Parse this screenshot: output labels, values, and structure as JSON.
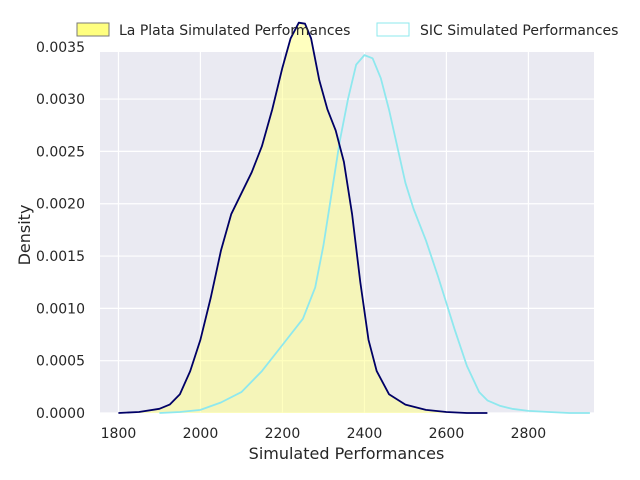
{
  "chart_data": {
    "type": "area",
    "title": "",
    "xlabel": "Simulated Performances",
    "ylabel": "Density",
    "xlim": [
      1755,
      2960
    ],
    "ylim": [
      0,
      0.00345
    ],
    "grid": true,
    "legend_position": "top",
    "x_ticks": [
      1800,
      2000,
      2200,
      2400,
      2600,
      2800
    ],
    "y_ticks": [
      0.0,
      0.0005,
      0.001,
      0.0015,
      0.002,
      0.0025,
      0.003,
      0.0035
    ],
    "x_tick_labels": [
      "1800",
      "2000",
      "2200",
      "2400",
      "2600",
      "2800"
    ],
    "y_tick_labels": [
      "0.0000",
      "0.0005",
      "0.0010",
      "0.0015",
      "0.0020",
      "0.0025",
      "0.0030",
      "0.0035"
    ],
    "colors": {
      "plot_background": "#eaeaf2",
      "grid": "#ffffff",
      "la_plata_fill": "#ffff7f",
      "la_plata_line": "#000066",
      "sic_line": "#8ee8ee"
    },
    "series": [
      {
        "name": "La Plata Simulated Performances",
        "fill": true,
        "x": [
          1800,
          1850,
          1900,
          1925,
          1950,
          1975,
          2000,
          2025,
          2050,
          2075,
          2100,
          2125,
          2150,
          2175,
          2200,
          2220,
          2240,
          2255,
          2270,
          2290,
          2310,
          2330,
          2350,
          2370,
          2390,
          2410,
          2430,
          2460,
          2500,
          2550,
          2600,
          2650,
          2700
        ],
        "y": [
          0.0,
          1e-05,
          4e-05,
          8e-05,
          0.00018,
          0.0004,
          0.0007,
          0.0011,
          0.00155,
          0.0019,
          0.0021,
          0.0023,
          0.00255,
          0.0029,
          0.0033,
          0.00358,
          0.00373,
          0.00372,
          0.00358,
          0.00318,
          0.0029,
          0.0027,
          0.0024,
          0.0019,
          0.00125,
          0.0007,
          0.0004,
          0.00018,
          8e-05,
          3e-05,
          1e-05,
          0.0,
          0.0
        ]
      },
      {
        "name": "SIC Simulated Performances",
        "fill": false,
        "x": [
          1900,
          1950,
          2000,
          2050,
          2100,
          2150,
          2200,
          2250,
          2280,
          2300,
          2320,
          2340,
          2360,
          2380,
          2400,
          2420,
          2440,
          2460,
          2480,
          2500,
          2520,
          2550,
          2580,
          2600,
          2620,
          2650,
          2680,
          2700,
          2730,
          2760,
          2800,
          2850,
          2900,
          2950
        ],
        "y": [
          0.0,
          1e-05,
          3e-05,
          0.0001,
          0.0002,
          0.0004,
          0.00065,
          0.0009,
          0.0012,
          0.0016,
          0.0021,
          0.0026,
          0.003,
          0.00333,
          0.00342,
          0.00339,
          0.0032,
          0.0029,
          0.00255,
          0.0022,
          0.00195,
          0.00165,
          0.0013,
          0.00105,
          0.0008,
          0.00045,
          0.0002,
          0.00012,
          7e-05,
          4e-05,
          2e-05,
          1e-05,
          0.0,
          0.0
        ]
      }
    ]
  }
}
